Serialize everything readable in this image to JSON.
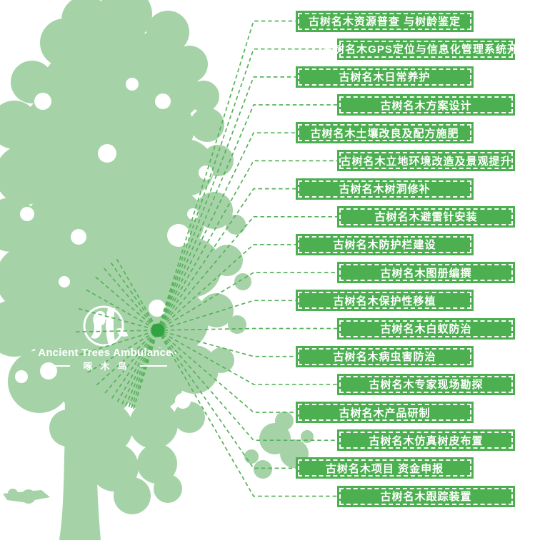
{
  "logo": {
    "name_en": "Ancient Trees Ambulance",
    "name_zh": "啄木鸟"
  },
  "services": [
    "古树名木资源普查 与树龄鉴定",
    "古树名木GPS定位与信息化管理系统开发",
    "古树名木日常养护",
    "古树名木方案设计",
    "古树名木土壤改良及配方施肥",
    "古树名木立地环境改造及景观提升",
    "古树名木树洞修补",
    "古树名木避雷针安装",
    "古树名木防护栏建设",
    "古树名木图册编撰",
    "古树名木保护性移植",
    "古树名木白蚁防治",
    "古树名木病虫害防治",
    "古树名木专家现场勘探",
    "古树名木产品研制",
    "古树名木仿真树皮布置",
    "古树名木项目 资金申报",
    "古树名木跟踪装置"
  ],
  "colors": {
    "tree_silhouette": "#a5d3a7",
    "service_box": "#4cb050",
    "connector_line": "#58b25b",
    "hub_dot": "#32a342",
    "label_text": "#ffffff"
  }
}
